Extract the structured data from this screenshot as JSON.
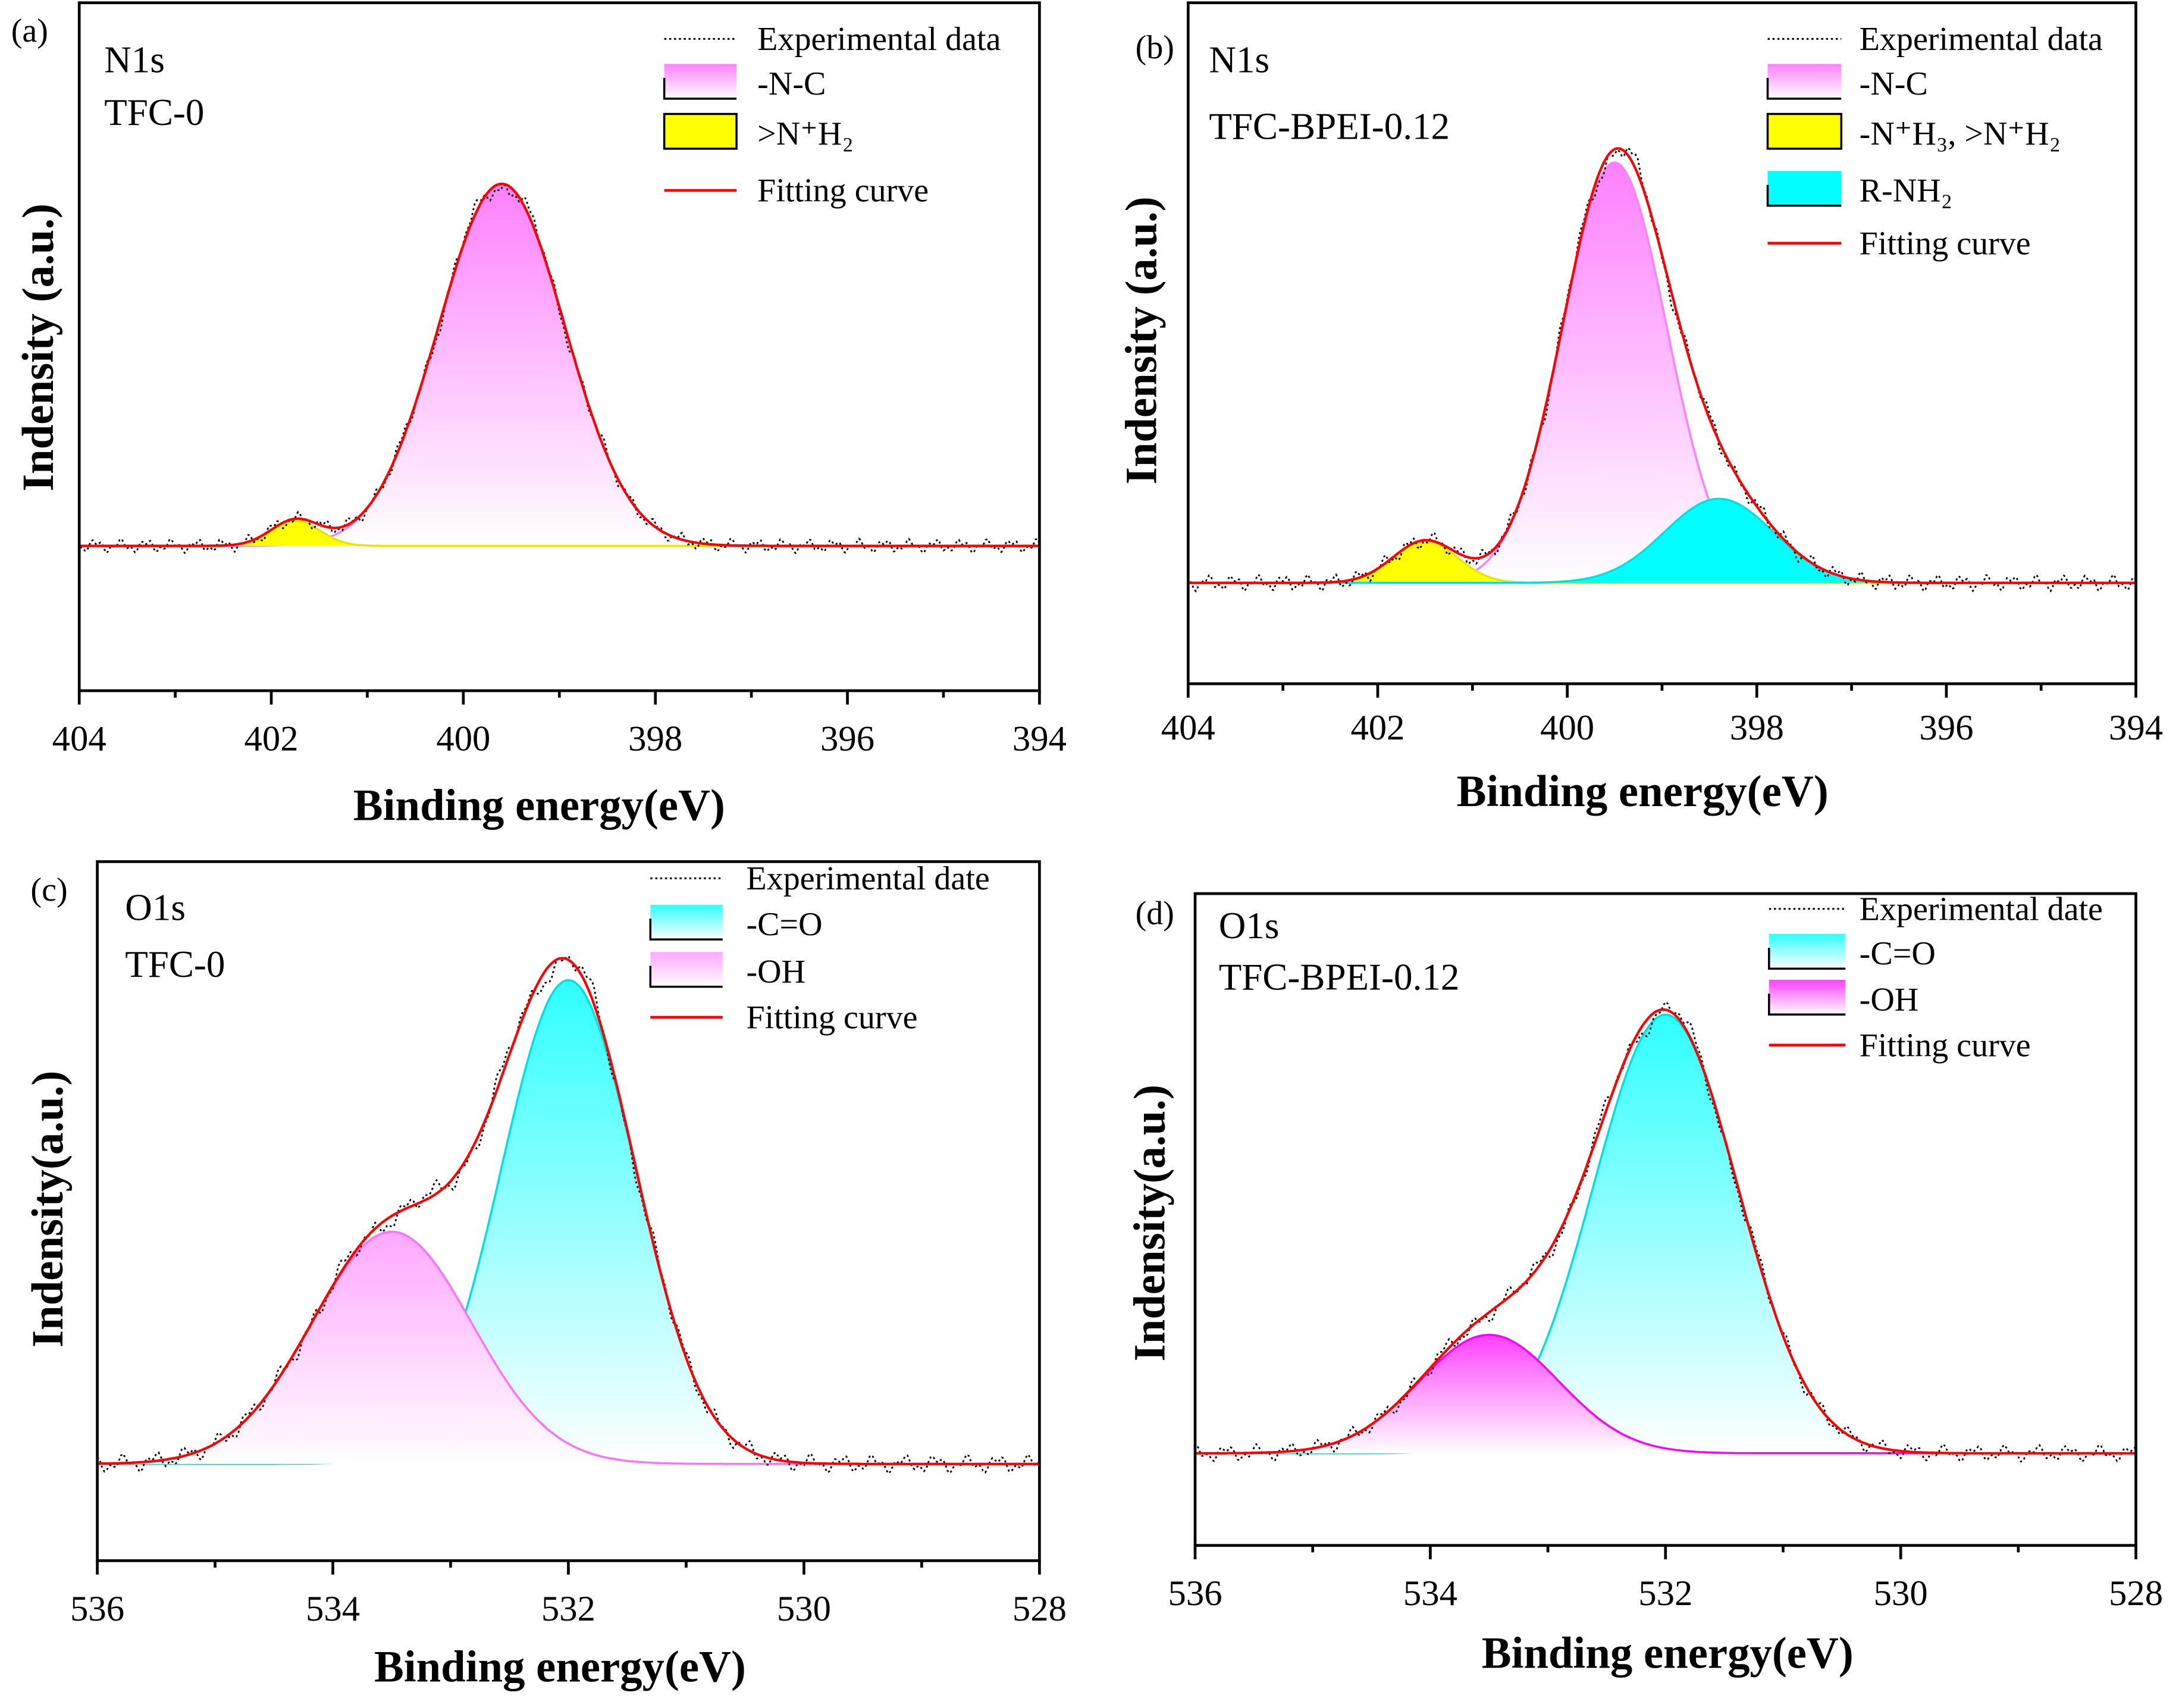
{
  "chart_data": [
    {
      "type": "line",
      "panel_label": "(a)",
      "annotations": [
        "N1s",
        "TFC-0"
      ],
      "xlabel": "Binding energy(eV)",
      "ylabel": "Indensity (a.u.)",
      "xlim": [
        404,
        394
      ],
      "ylim": [
        -0.4,
        1.5
      ],
      "xticks": [
        404,
        402,
        400,
        398,
        396,
        394
      ],
      "tick_labels": [
        "404",
        "402",
        "400",
        "398",
        "396",
        "394"
      ],
      "legend_position": "top-right",
      "legend": [
        {
          "label": "Experimental data",
          "kind": "dotted"
        },
        {
          "label": "-N-C",
          "kind": "pink"
        },
        {
          "label": ">N⁺H₂",
          "kind": "yellow"
        },
        {
          "label": "Fitting curve",
          "kind": "red"
        }
      ],
      "components": [
        {
          "name": "-N-C",
          "center": 399.6,
          "height": 1.0,
          "fwhm": 1.55,
          "style": "pink"
        },
        {
          "name": ">N⁺H₂",
          "center": 401.75,
          "height": 0.07,
          "fwhm": 0.6,
          "style": "yellow"
        }
      ],
      "colors": {
        "fit": "#ff0000",
        "pink": "#ff80ff",
        "yellow": "#ffff00"
      }
    },
    {
      "type": "line",
      "panel_label": "(b)",
      "annotations": [
        "N1s",
        "TFC-BPEI-0.12"
      ],
      "xlabel": "Binding energy(eV)",
      "ylabel": "Indensity (a.u.)",
      "xlim": [
        404,
        394
      ],
      "ylim": [
        -0.24,
        1.38
      ],
      "xticks": [
        404,
        402,
        400,
        398,
        396,
        394
      ],
      "tick_labels": [
        "404",
        "402",
        "400",
        "398",
        "396",
        "394"
      ],
      "legend_position": "top-right",
      "legend": [
        {
          "label": "Experimental data",
          "kind": "dotted"
        },
        {
          "label": "-N-C",
          "kind": "pink"
        },
        {
          "label": "-N⁺H₃, >N⁺H₂",
          "kind": "yellow"
        },
        {
          "label": "R-NH₂",
          "kind": "cyansolid"
        },
        {
          "label": "Fitting curve",
          "kind": "red"
        }
      ],
      "components": [
        {
          "name": "-N-C",
          "center": 399.5,
          "height": 1.0,
          "fwhm": 1.3,
          "style": "pink"
        },
        {
          "name": "-N⁺H₃, >N⁺H₂",
          "center": 401.5,
          "height": 0.1,
          "fwhm": 0.8,
          "style": "yellow"
        },
        {
          "name": "R-NH₂",
          "center": 398.4,
          "height": 0.2,
          "fwhm": 1.35,
          "style": "cyansolid"
        }
      ],
      "colors": {
        "fit": "#ff0000",
        "pink": "#ff80ff",
        "yellow": "#ffff00",
        "cyan": "#00ffff"
      }
    },
    {
      "type": "line",
      "panel_label": "(c)",
      "annotations": [
        "O1s",
        "TFC-0"
      ],
      "xlabel": "Binding energy(eV)",
      "ylabel": "Indensity(a.u.)",
      "xlim": [
        536,
        528
      ],
      "ylim": [
        -0.2,
        1.245
      ],
      "xticks": [
        536,
        534,
        532,
        530,
        528
      ],
      "tick_labels": [
        "536",
        "534",
        "532",
        "530",
        "528"
      ],
      "legend_position": "top-right",
      "legend": [
        {
          "label": "Experimental date",
          "kind": "dotted"
        },
        {
          "label": "-C=O",
          "kind": "cyan"
        },
        {
          "label": "-OH",
          "kind": "pinklight"
        },
        {
          "label": "Fitting curve",
          "kind": "red"
        }
      ],
      "components": [
        {
          "name": "-C=O",
          "center": 532.0,
          "height": 1.0,
          "fwhm": 1.35,
          "style": "cyan"
        },
        {
          "name": "-OH",
          "center": 533.5,
          "height": 0.48,
          "fwhm": 1.6,
          "style": "pinklight"
        }
      ],
      "colors": {
        "fit": "#ff0000",
        "cyan": "#00ffff",
        "pink": "#ff80ff"
      }
    },
    {
      "type": "line",
      "panel_label": "(d)",
      "annotations": [
        "O1s",
        "TFC-BPEI-0.12"
      ],
      "xlabel": "Binding energy(eV)",
      "ylabel": "Indensity(a.u.)",
      "xlim": [
        536,
        528
      ],
      "ylim": [
        -0.21,
        1.276
      ],
      "xticks": [
        536,
        534,
        532,
        530,
        528
      ],
      "tick_labels": [
        "536",
        "534",
        "532",
        "530",
        "528"
      ],
      "legend_position": "top-right",
      "legend": [
        {
          "label": "Experimental date",
          "kind": "dotted"
        },
        {
          "label": "-C=O",
          "kind": "cyan"
        },
        {
          "label": "-OH",
          "kind": "magenta"
        },
        {
          "label": "Fitting curve",
          "kind": "red"
        }
      ],
      "components": [
        {
          "name": "-C=O",
          "center": 532.0,
          "height": 1.0,
          "fwhm": 1.45,
          "style": "cyan"
        },
        {
          "name": "-OH",
          "center": 533.5,
          "height": 0.27,
          "fwhm": 1.4,
          "style": "magenta"
        }
      ],
      "colors": {
        "fit": "#ff0000",
        "cyan": "#00ffff",
        "magenta": "#ff00ff"
      }
    }
  ]
}
